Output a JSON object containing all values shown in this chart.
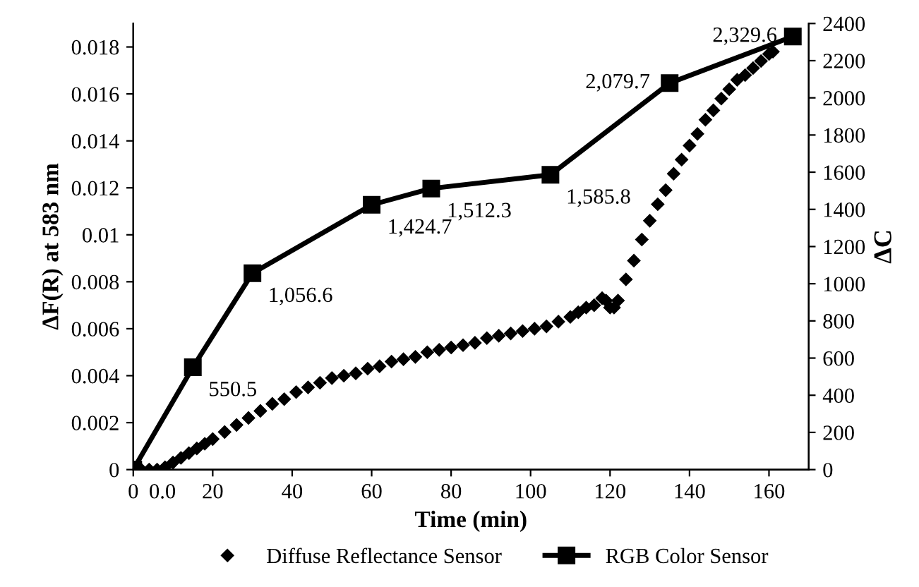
{
  "chart_data": {
    "type": "scatter",
    "xlabel": "Time (min)",
    "ylabel": "ΔF(R) at 583 nm",
    "y2label": "ΔC",
    "xlim": [
      0,
      170
    ],
    "xticks": [
      0,
      20,
      40,
      60,
      80,
      100,
      120,
      140,
      160
    ],
    "ylim": [
      0,
      0.019
    ],
    "yticks": [
      0,
      0.002,
      0.004,
      0.006,
      0.008,
      0.01,
      0.012,
      0.014,
      0.016,
      0.018
    ],
    "y2lim": [
      0,
      2400
    ],
    "y2ticks": [
      0,
      200,
      400,
      600,
      800,
      1000,
      1200,
      1400,
      1600,
      1800,
      2000,
      2200,
      2400
    ],
    "grid": false,
    "legend": "bottom",
    "series": [
      {
        "name": "Diffuse Reflectance Sensor",
        "marker": "diamond",
        "color": "#000000",
        "x": [
          2,
          4,
          6,
          8,
          10,
          12,
          14,
          16,
          18,
          20,
          23,
          26,
          29,
          32,
          35,
          38,
          41,
          44,
          47,
          50,
          53,
          56,
          59,
          62,
          65,
          68,
          71,
          74,
          77,
          80,
          83,
          86,
          89,
          92,
          95,
          98,
          101,
          104,
          107,
          110,
          112,
          114,
          116,
          118,
          119,
          120,
          121,
          122,
          124,
          126,
          128,
          130,
          132,
          134,
          136,
          138,
          140,
          142,
          144,
          146,
          148,
          150,
          152,
          154,
          156,
          158,
          160,
          161
        ],
        "values": [
          0,
          0,
          0,
          0.0001,
          0.0003,
          0.0005,
          0.0007,
          0.0009,
          0.0011,
          0.0013,
          0.0016,
          0.0019,
          0.0022,
          0.0025,
          0.0028,
          0.003,
          0.0033,
          0.0035,
          0.0037,
          0.0039,
          0.004,
          0.0041,
          0.0043,
          0.0044,
          0.0046,
          0.0047,
          0.0048,
          0.005,
          0.0051,
          0.0052,
          0.0053,
          0.0054,
          0.0056,
          0.0057,
          0.0058,
          0.0059,
          0.006,
          0.0061,
          0.0063,
          0.0065,
          0.0067,
          0.0069,
          0.007,
          0.0073,
          0.0072,
          0.0069,
          0.0069,
          0.0072,
          0.0081,
          0.0089,
          0.0098,
          0.0106,
          0.0113,
          0.0119,
          0.0126,
          0.0132,
          0.0138,
          0.0143,
          0.0149,
          0.0153,
          0.0158,
          0.0162,
          0.0166,
          0.0168,
          0.0171,
          0.0174,
          0.0177,
          0.0178
        ]
      },
      {
        "name": "RGB Color Sensor",
        "type": "line",
        "axis": "y2",
        "marker": "square",
        "line_style": "solid",
        "color": "#000000",
        "x": [
          0,
          15,
          30,
          60,
          75,
          105,
          135,
          166
        ],
        "values": [
          0,
          550.5,
          1056.6,
          1424.7,
          1512.3,
          1585.8,
          2079.7,
          2329.6
        ],
        "value_labels": [
          "0.0",
          "550.5",
          "1,056.6",
          "1,424.7",
          "1,512.3",
          "1,585.8",
          "2,079.7",
          "2,329.6"
        ]
      }
    ]
  }
}
